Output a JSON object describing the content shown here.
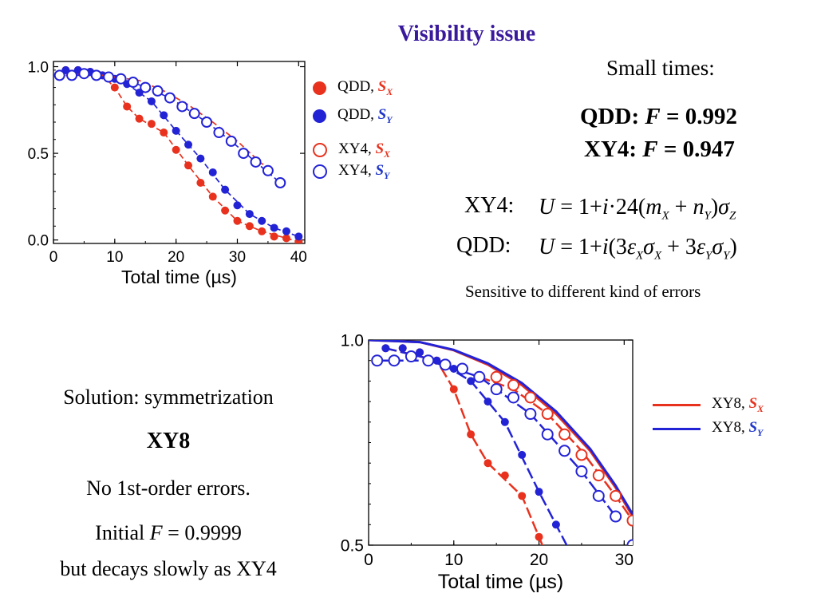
{
  "slide": {
    "title": "Visibility issue",
    "small_times": "Small times:",
    "qdd_fidelity": {
      "label": "QDD: ",
      "var": "F",
      "value": " = 0.992"
    },
    "xy4_fidelity": {
      "label": "XY4: ",
      "var": "F",
      "value": " = 0.947"
    },
    "xy4_label": "XY4:",
    "qdd_label": "QDD:",
    "xy4_eq": {
      "U": "U",
      "lhs": " = 1+",
      "i": "i",
      "mid": "·24(",
      "m": "m",
      "msub": "X",
      "plus": " + ",
      "n": "n",
      "nsub": "Y",
      "close": ")",
      "sigma": "σ",
      "sigsub": "Z"
    },
    "qdd_eq": {
      "U": "U",
      "lhs": " = 1+",
      "i": "i",
      "open": "(3",
      "eps1": "ε",
      "eps1sub": "X",
      "sig1": "σ",
      "sig1sub": "X",
      "plus": " + 3",
      "eps2": "ε",
      "eps2sub": "Y",
      "sig2": "σ",
      "sig2sub": "Y",
      "close": ")"
    },
    "sensitive": "Sensitive to different kind of errors",
    "solution": "Solution: symmetrization",
    "xy8": "XY8",
    "no_errors": "No 1st-order errors.",
    "initial": {
      "pre": "Initial ",
      "var": "F",
      "post": " = 0.9999"
    },
    "decays": "but decays slowly as XY4"
  },
  "colors": {
    "red": "#e8321e",
    "blue": "#2323d6",
    "title": "#3a1a9c",
    "legend_red": "#e8321e",
    "legend_blue": "#1f35c9"
  },
  "chart_data": [
    {
      "type": "scatter",
      "xlabel": "Total time (µs)",
      "xlim": [
        0,
        41
      ],
      "ylim": [
        -0.02,
        1.03
      ],
      "xticks": [
        0,
        10,
        20,
        30,
        40
      ],
      "yticks": [
        "0.0",
        "0.5",
        "1.0"
      ],
      "legend": [
        {
          "name": "QDD, ",
          "sym": "S",
          "sub": "X",
          "marker": "filled",
          "color": "red"
        },
        {
          "name": "QDD, ",
          "sym": "S",
          "sub": "Y",
          "marker": "filled",
          "color": "blue"
        },
        {
          "name": "XY4, ",
          "sym": "S",
          "sub": "X",
          "marker": "open",
          "color": "red"
        },
        {
          "name": "XY4, ",
          "sym": "S",
          "sub": "Y",
          "marker": "open",
          "color": "blue"
        }
      ],
      "series": [
        {
          "name": "QDD, SX",
          "color": "red",
          "marker": "filled",
          "x": [
            2,
            4,
            6,
            8,
            10,
            12,
            14,
            16,
            18,
            20,
            22,
            24,
            26,
            28,
            30,
            32,
            34,
            36,
            38,
            40
          ],
          "y": [
            0.98,
            0.98,
            0.97,
            0.95,
            0.88,
            0.77,
            0.7,
            0.67,
            0.62,
            0.52,
            0.43,
            0.33,
            0.25,
            0.17,
            0.11,
            0.08,
            0.05,
            0.02,
            0.01,
            -0.01
          ],
          "fit": [
            [
              2,
              0.98
            ],
            [
              8,
              0.95
            ],
            [
              10,
              0.88
            ],
            [
              12,
              0.77
            ],
            [
              14,
              0.7
            ],
            [
              18,
              0.62
            ],
            [
              22,
              0.43
            ],
            [
              26,
              0.25
            ],
            [
              30,
              0.11
            ],
            [
              34,
              0.05
            ],
            [
              40,
              -0.01
            ]
          ]
        },
        {
          "name": "QDD, SY",
          "color": "blue",
          "marker": "filled",
          "x": [
            2,
            4,
            6,
            8,
            10,
            12,
            14,
            16,
            18,
            20,
            22,
            24,
            26,
            28,
            30,
            32,
            34,
            36,
            38,
            40
          ],
          "y": [
            0.98,
            0.98,
            0.97,
            0.95,
            0.93,
            0.9,
            0.85,
            0.8,
            0.72,
            0.63,
            0.55,
            0.47,
            0.39,
            0.29,
            0.2,
            0.15,
            0.11,
            0.07,
            0.05,
            0.02
          ],
          "fit": [
            [
              2,
              0.98
            ],
            [
              8,
              0.95
            ],
            [
              12,
              0.9
            ],
            [
              16,
              0.8
            ],
            [
              20,
              0.63
            ],
            [
              24,
              0.47
            ],
            [
              28,
              0.29
            ],
            [
              32,
              0.15
            ],
            [
              36,
              0.07
            ],
            [
              40,
              0.02
            ]
          ]
        },
        {
          "name": "XY4, SX",
          "color": "red",
          "marker": "open",
          "x": [],
          "y": [],
          "fit": [
            [
              2,
              0.95
            ],
            [
              6,
              0.96
            ],
            [
              10,
              0.94
            ],
            [
              14,
              0.92
            ],
            [
              18,
              0.86
            ],
            [
              22,
              0.78
            ],
            [
              26,
              0.68
            ],
            [
              30,
              0.57
            ],
            [
              34,
              0.44
            ],
            [
              36,
              0.41
            ]
          ]
        },
        {
          "name": "XY4, SY",
          "color": "blue",
          "marker": "open",
          "x": [
            1,
            3,
            5,
            7,
            9,
            11,
            13,
            15,
            17,
            19,
            21,
            23,
            25,
            27,
            29,
            31,
            33,
            35,
            37
          ],
          "y": [
            0.95,
            0.95,
            0.96,
            0.95,
            0.94,
            0.93,
            0.91,
            0.88,
            0.86,
            0.82,
            0.77,
            0.73,
            0.68,
            0.62,
            0.57,
            0.5,
            0.45,
            0.4,
            0.33
          ],
          "fit": [
            [
              1,
              0.95
            ],
            [
              7,
              0.95
            ],
            [
              13,
              0.91
            ],
            [
              19,
              0.82
            ],
            [
              25,
              0.68
            ],
            [
              29,
              0.57
            ],
            [
              33,
              0.45
            ],
            [
              37,
              0.33
            ]
          ]
        }
      ]
    },
    {
      "type": "line",
      "xlabel": "Total time (µs)",
      "xlim": [
        0,
        31
      ],
      "ylim": [
        0.5,
        1.0
      ],
      "xticks": [
        0,
        10,
        20,
        30
      ],
      "yticks": [
        "0.5",
        "1.0"
      ],
      "legend": [
        {
          "name": "XY8, ",
          "sym": "S",
          "sub": "X",
          "marker": "line",
          "color": "red"
        },
        {
          "name": "XY8, ",
          "sym": "S",
          "sub": "Y",
          "marker": "line",
          "color": "blue"
        }
      ],
      "series": [
        {
          "name": "XY8, SX",
          "color": "red",
          "marker": "line",
          "line": [
            [
              0,
              1.0
            ],
            [
              6,
              0.995
            ],
            [
              10,
              0.975
            ],
            [
              14,
              0.94
            ],
            [
              18,
              0.89
            ],
            [
              22,
              0.82
            ],
            [
              26,
              0.73
            ],
            [
              29,
              0.64
            ],
            [
              31,
              0.57
            ]
          ]
        },
        {
          "name": "XY8, SY",
          "color": "blue",
          "marker": "line",
          "line": [
            [
              0,
              1.0
            ],
            [
              6,
              0.995
            ],
            [
              10,
              0.976
            ],
            [
              14,
              0.943
            ],
            [
              18,
              0.895
            ],
            [
              22,
              0.826
            ],
            [
              26,
              0.735
            ],
            [
              29,
              0.645
            ],
            [
              31,
              0.575
            ]
          ]
        },
        {
          "name": "QDD, SX",
          "color": "red",
          "marker": "filled",
          "x": [
            2,
            4,
            6,
            8,
            10,
            12,
            14,
            16,
            18,
            20
          ],
          "y": [
            0.98,
            0.98,
            0.97,
            0.95,
            0.88,
            0.77,
            0.7,
            0.67,
            0.62,
            0.52
          ],
          "fit": [
            [
              2,
              0.98
            ],
            [
              8,
              0.95
            ],
            [
              10,
              0.88
            ],
            [
              12,
              0.77
            ],
            [
              14,
              0.7
            ],
            [
              18,
              0.62
            ],
            [
              20,
              0.52
            ],
            [
              21,
              0.47
            ]
          ]
        },
        {
          "name": "QDD, SY",
          "color": "blue",
          "marker": "filled",
          "x": [
            2,
            4,
            6,
            8,
            10,
            12,
            14,
            16,
            18,
            20,
            22
          ],
          "y": [
            0.98,
            0.98,
            0.97,
            0.95,
            0.93,
            0.9,
            0.85,
            0.8,
            0.72,
            0.63,
            0.55
          ],
          "fit": [
            [
              2,
              0.98
            ],
            [
              8,
              0.95
            ],
            [
              12,
              0.9
            ],
            [
              16,
              0.8
            ],
            [
              20,
              0.63
            ],
            [
              22,
              0.55
            ],
            [
              24,
              0.47
            ]
          ]
        },
        {
          "name": "XY4, SX",
          "color": "red",
          "marker": "open",
          "x": [
            15,
            17,
            19,
            21,
            23,
            25,
            27,
            29,
            31
          ],
          "y": [
            0.91,
            0.89,
            0.86,
            0.82,
            0.77,
            0.72,
            0.67,
            0.62,
            0.56
          ],
          "fit": [
            [
              13,
              0.91
            ],
            [
              17,
              0.88
            ],
            [
              21,
              0.82
            ],
            [
              25,
              0.73
            ],
            [
              29,
              0.62
            ],
            [
              31,
              0.56
            ]
          ]
        },
        {
          "name": "XY4, SY",
          "color": "blue",
          "marker": "open",
          "x": [
            1,
            3,
            5,
            7,
            9,
            11,
            13,
            15,
            17,
            19,
            21,
            23,
            25,
            27,
            29,
            31
          ],
          "y": [
            0.95,
            0.95,
            0.96,
            0.95,
            0.94,
            0.93,
            0.91,
            0.88,
            0.86,
            0.82,
            0.77,
            0.73,
            0.68,
            0.62,
            0.57,
            0.5
          ],
          "fit": [
            [
              1,
              0.95
            ],
            [
              7,
              0.95
            ],
            [
              13,
              0.91
            ],
            [
              19,
              0.82
            ],
            [
              25,
              0.68
            ],
            [
              29,
              0.57
            ]
          ]
        }
      ]
    }
  ]
}
